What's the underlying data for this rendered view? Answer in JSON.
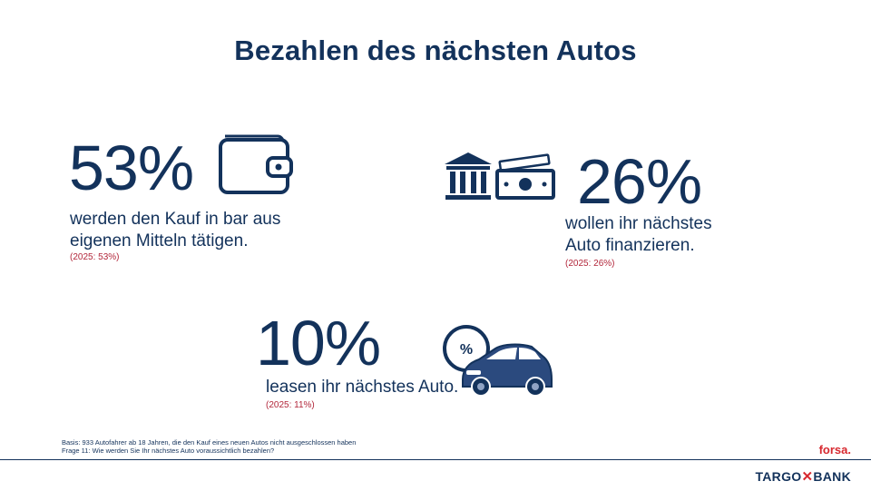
{
  "title": "Bezahlen des nächsten Autos",
  "stats": [
    {
      "value": "53%",
      "line1": "werden den Kauf in bar aus",
      "line2": "eigenen Mitteln tätigen.",
      "prev": "(2025: 53%)",
      "icon": "wallet-icon"
    },
    {
      "value": "26%",
      "line1": "wollen ihr nächstes",
      "line2": "Auto finanzieren.",
      "prev": "(2025: 26%)",
      "icon": "bank-money-icon"
    },
    {
      "value": "10%",
      "line1": "leasen ihr nächstes Auto.",
      "prev": "(2025: 11%)",
      "icon": "car-percent-icon",
      "icon_label": "%"
    }
  ],
  "footer": {
    "basis": "Basis: 933 Autofahrer ab 18 Jahren, die den Kauf eines neuen Autos nicht ausgeschlossen haben",
    "question": "Frage 11: Wie werden Sie Ihr nächstes Auto voraussichtlich bezahlen?"
  },
  "logos": {
    "forsa": "forsa.",
    "brand_left": "TARGO",
    "brand_x": "✕",
    "brand_right": "BANK"
  },
  "colors": {
    "primary": "#13325b",
    "accent": "#d7282f",
    "previous": "#b2263a"
  }
}
